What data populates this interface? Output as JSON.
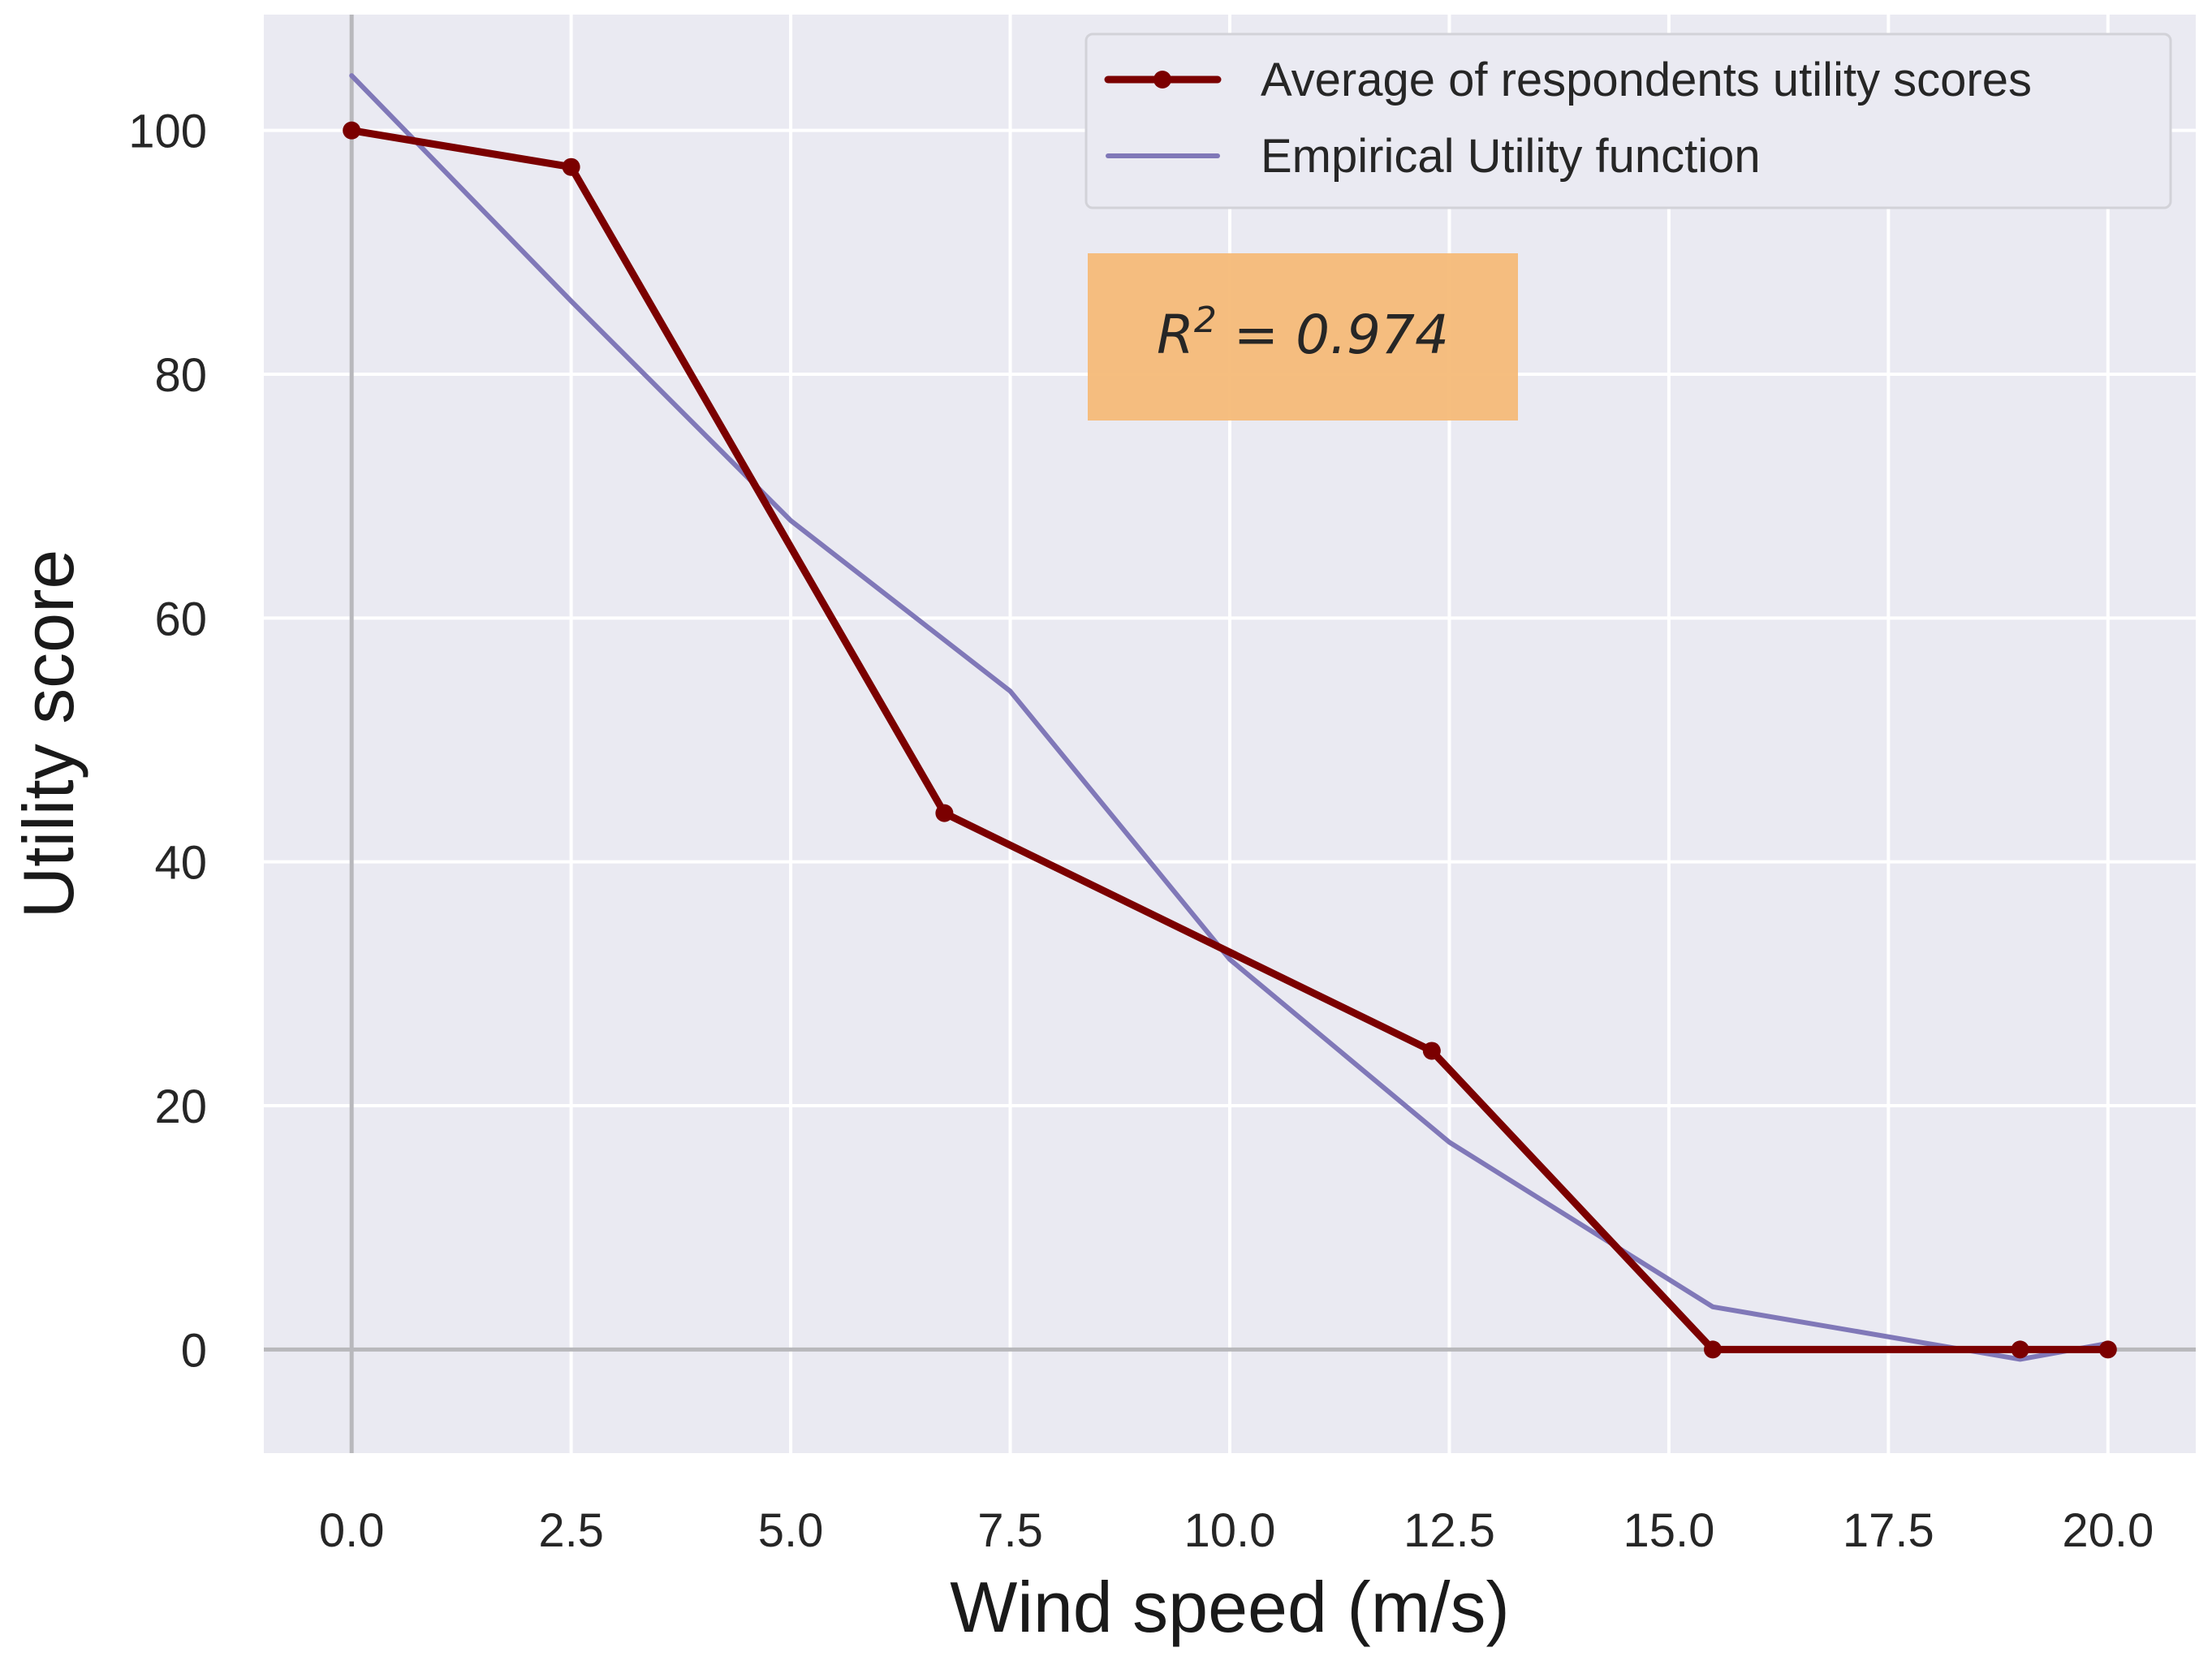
{
  "chart_data": {
    "type": "line",
    "title": "",
    "xlabel": "Wind speed (m/s)",
    "ylabel": "Utility score",
    "xlim": [
      -1.0,
      21.0
    ],
    "ylim": [
      -8.5,
      109.5
    ],
    "grid": true,
    "xticks": [
      0.0,
      2.5,
      5.0,
      7.5,
      10.0,
      12.5,
      15.0,
      17.5,
      20.0
    ],
    "xtick_labels": [
      "0.0",
      "2.5",
      "5.0",
      "7.5",
      "10.0",
      "12.5",
      "15.0",
      "17.5",
      "20.0"
    ],
    "yticks": [
      0,
      20,
      40,
      60,
      80,
      100
    ],
    "ytick_labels": [
      "0",
      "20",
      "40",
      "60",
      "80",
      "100"
    ],
    "reference_lines": {
      "x": 0,
      "y": 0
    },
    "series": [
      {
        "name": "Average of respondents utility scores",
        "color": "#7b0000",
        "markers": true,
        "x": [
          0.0,
          2.5,
          6.75,
          12.3,
          15.5,
          19.0,
          20.0
        ],
        "y": [
          100.0,
          97.0,
          44.0,
          24.5,
          0.0,
          0.0,
          0.0
        ]
      },
      {
        "name": "Empirical Utility function",
        "color": "#8078b8",
        "markers": false,
        "x": [
          0.0,
          2.5,
          5.0,
          7.5,
          10.0,
          12.5,
          15.5,
          19.0,
          20.0
        ],
        "y": [
          104.5,
          86.0,
          68.0,
          54.0,
          32.0,
          17.0,
          3.5,
          -0.8,
          0.5
        ]
      }
    ],
    "legend_position": "top-right",
    "annotation": {
      "prefix": "R",
      "superscript": "2",
      "suffix": " = 0.974",
      "background": "#f5bb78"
    },
    "plot_background": "#eaeaf2"
  }
}
